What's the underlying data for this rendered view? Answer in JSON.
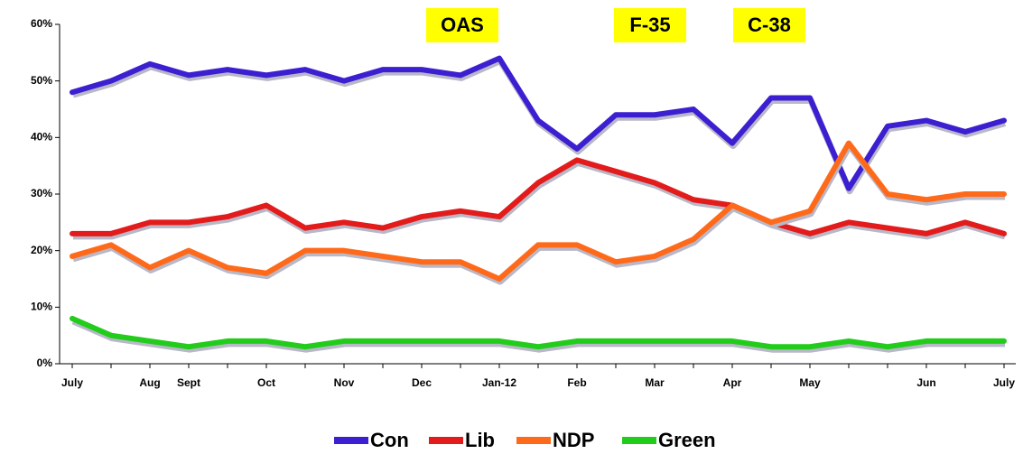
{
  "chart_data": {
    "type": "line",
    "categories": [
      "July",
      null,
      "Aug",
      "Sept",
      null,
      "Oct",
      null,
      "Nov",
      null,
      "Dec",
      null,
      "Jan-12",
      null,
      "Feb",
      null,
      "Mar",
      null,
      "Apr",
      null,
      "May",
      null,
      null,
      "Jun",
      null,
      "July"
    ],
    "series": [
      {
        "name": "Con",
        "color": "#3b1fd1",
        "values": [
          48,
          50,
          53,
          51,
          52,
          51,
          52,
          50,
          52,
          52,
          51,
          54,
          43,
          38,
          44,
          44,
          45,
          39,
          47,
          47,
          31,
          42,
          43,
          41,
          43
        ]
      },
      {
        "name": "Lib",
        "color": "#e31b1b",
        "values": [
          23,
          23,
          25,
          25,
          26,
          28,
          24,
          25,
          24,
          26,
          27,
          26,
          32,
          36,
          34,
          32,
          29,
          28,
          25,
          23,
          25,
          24,
          23,
          25,
          23
        ]
      },
      {
        "name": "NDP",
        "color": "#ff6a1a",
        "values": [
          19,
          21,
          17,
          20,
          17,
          16,
          20,
          20,
          19,
          18,
          18,
          15,
          21,
          21,
          18,
          19,
          22,
          28,
          25,
          27,
          39,
          30,
          29,
          30,
          30
        ]
      },
      {
        "name": "Green",
        "color": "#22cc1a",
        "values": [
          8,
          5,
          4,
          3,
          4,
          4,
          3,
          4,
          4,
          4,
          4,
          4,
          3,
          4,
          4,
          4,
          4,
          4,
          3,
          3,
          4,
          3,
          4,
          4,
          4
        ]
      }
    ],
    "ylim": [
      0,
      60
    ],
    "yticks": [
      {
        "value": 0,
        "label": "0%"
      },
      {
        "value": 10,
        "label": "10%"
      },
      {
        "value": 20,
        "label": "20%"
      },
      {
        "value": 30,
        "label": "30%"
      },
      {
        "value": 40,
        "label": "40%"
      },
      {
        "value": 50,
        "label": "50%"
      },
      {
        "value": 60,
        "label": "60%"
      }
    ],
    "annotations": [
      "OAS",
      "F-35",
      "C-38"
    ],
    "legend": "bottom"
  }
}
